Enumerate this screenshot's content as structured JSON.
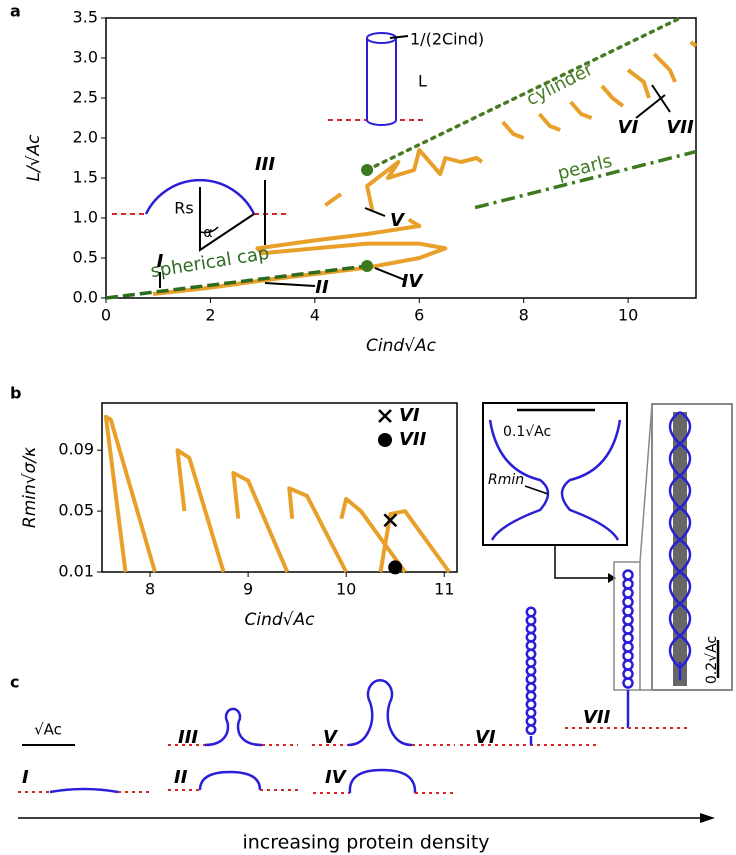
{
  "panels": [
    "a",
    "b",
    "c"
  ],
  "chart_data": [
    {
      "type": "line",
      "xlabel": "Cind√Ac",
      "ylabel": "L/√Ac",
      "xlim": [
        0,
        11.3
      ],
      "ylim": [
        0,
        3.5
      ],
      "xticks": [
        0,
        2,
        4,
        6,
        8,
        10
      ],
      "yticks": [
        {
          "value": 0,
          "label": "0.0"
        },
        {
          "value": 0.5,
          "label": "0.5"
        },
        {
          "value": 1,
          "label": "1.0"
        },
        {
          "value": 1.5,
          "label": "1.5"
        },
        {
          "value": 2,
          "label": "2.0"
        },
        {
          "value": 2.5,
          "label": "2.5"
        },
        {
          "value": 3,
          "label": "3.0"
        },
        {
          "value": 3.5,
          "label": "3.5"
        }
      ],
      "series": [
        {
          "color": "#e8a02a",
          "x": [
            0.9,
            2,
            3,
            4,
            5,
            6,
            6.5,
            6,
            5,
            4,
            3,
            2.9,
            4,
            5,
            6,
            5.8,
            null,
            4.2,
            4.5,
            null,
            5.1,
            5.0,
            5.6,
            5.4,
            5.9,
            6.0,
            6.4,
            6.5,
            6.8,
            7.1,
            7.2,
            null,
            7.6,
            7.8,
            8.0,
            null,
            8.3,
            8.5,
            8.7,
            null,
            8.9,
            9.1,
            9.3,
            null,
            9.5,
            9.7,
            9.9,
            null,
            10.0,
            10.3,
            10.4,
            null,
            10.5,
            10.8,
            10.9,
            null,
            11.2,
            11.3
          ],
          "values": [
            0.05,
            0.13,
            0.22,
            0.3,
            0.38,
            0.5,
            0.62,
            0.68,
            0.68,
            0.62,
            0.56,
            0.62,
            0.72,
            0.8,
            0.9,
            0.98,
            null,
            1.16,
            1.3,
            null,
            1.1,
            1.4,
            1.7,
            1.5,
            1.6,
            1.85,
            1.55,
            1.75,
            1.7,
            1.75,
            1.7,
            null,
            2.2,
            2.05,
            2.0,
            null,
            2.3,
            2.15,
            2.1,
            null,
            2.45,
            2.3,
            2.25,
            null,
            2.65,
            2.5,
            2.4,
            null,
            2.85,
            2.7,
            2.5,
            null,
            3.05,
            2.85,
            2.7,
            null,
            3.2,
            3.15
          ]
        },
        {
          "name": "spherical cap",
          "color": "#2e6b1f",
          "dash": "dashed",
          "x": [
            0,
            5
          ],
          "values": [
            0,
            0.4
          ]
        },
        {
          "name": "cylinder",
          "color": "#4a7a22",
          "dash": "dotted",
          "x": [
            5,
            11
          ],
          "values": [
            1.6,
            3.5
          ]
        },
        {
          "name": "pearls",
          "color": "#3d7a1f",
          "dash": "dashdot",
          "x": [
            7.07,
            11.3
          ],
          "values": [
            1.13,
            1.83
          ]
        },
        {
          "color": "#3d7a1f",
          "marker": "dot",
          "x": [
            5,
            5
          ],
          "values": [
            1.6,
            0.4
          ]
        }
      ],
      "labels": [
        "I",
        "II",
        "III",
        "IV",
        "V",
        "VI",
        "VII"
      ],
      "annotations": [
        "1/(2Cind)",
        "L",
        "Rs",
        "α"
      ]
    },
    {
      "type": "line",
      "xlabel": "Cind√Ac",
      "ylabel": "Rmin√σ/κ",
      "xlim": [
        7.51,
        11.13
      ],
      "ylim": [
        0.01,
        0.121
      ],
      "xticks": [
        8,
        9,
        10,
        11
      ],
      "yticks": [
        0.01,
        0.05,
        0.09
      ],
      "legend": "upper right",
      "series": [
        {
          "color": "#e8a02a",
          "x": [
            7.75,
            7.55,
            7.6,
            8.05,
            null,
            8.35,
            8.28,
            8.4,
            8.75,
            null,
            8.9,
            8.85,
            9.0,
            9.4,
            null,
            9.45,
            9.42,
            9.6,
            10.0,
            null,
            9.95,
            10.0,
            10.15,
            10.6,
            null,
            10.35,
            10.45,
            10.6,
            11.05
          ],
          "values": [
            0.01,
            0.112,
            0.11,
            0.01,
            null,
            0.05,
            0.09,
            0.085,
            0.01,
            null,
            0.045,
            0.075,
            0.07,
            0.01,
            null,
            0.045,
            0.065,
            0.06,
            0.01,
            null,
            0.045,
            0.058,
            0.05,
            0.01,
            null,
            0.01,
            0.048,
            0.05,
            0.01
          ]
        },
        {
          "name": "VI",
          "color": "#000000",
          "marker": "x",
          "x": [
            10.45
          ],
          "values": [
            0.044
          ]
        },
        {
          "name": "VII",
          "color": "#000000",
          "marker": "dot",
          "x": [
            10.5
          ],
          "values": [
            0.013
          ]
        }
      ]
    }
  ],
  "insets": {
    "neck_scale": "0.1√Ac",
    "rmin": "Rmin",
    "pearl_scale": "0.2√Ac"
  },
  "shapes": {
    "scale": "√Ac",
    "labels": [
      "I",
      "II",
      "III",
      "IV",
      "V",
      "VI",
      "VII"
    ]
  },
  "arrow_label": "increasing protein density"
}
